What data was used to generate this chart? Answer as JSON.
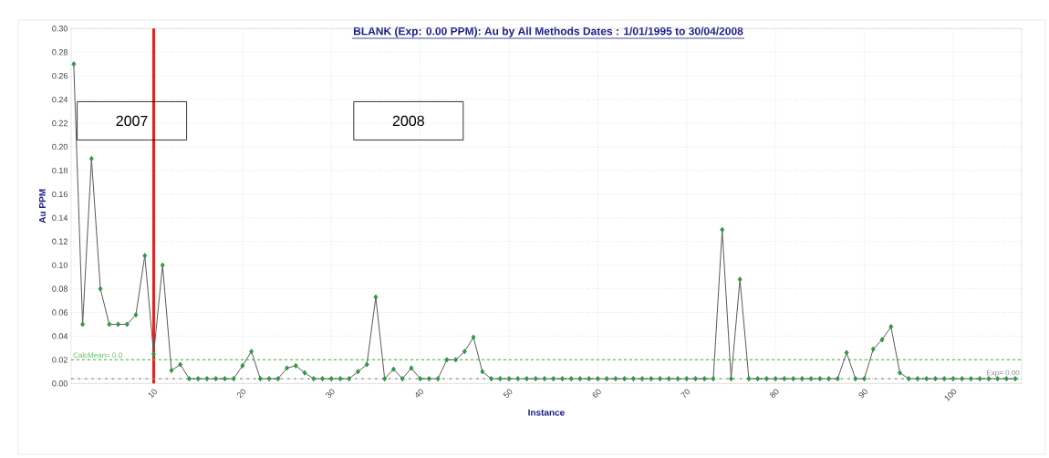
{
  "chart_data": {
    "type": "line",
    "title": "BLANK (Exp: 0.00 PPM): Au by All Methods Dates : 1/01/1995 to 30/04/2008",
    "xlabel": "Instance",
    "ylabel": "Au PPM",
    "x": [
      1,
      2,
      3,
      4,
      5,
      6,
      7,
      8,
      9,
      10,
      11,
      12,
      13,
      14,
      15,
      16,
      17,
      18,
      19,
      20,
      21,
      22,
      23,
      24,
      25,
      26,
      27,
      28,
      29,
      30,
      31,
      32,
      33,
      34,
      35,
      36,
      37,
      38,
      39,
      40,
      41,
      42,
      43,
      44,
      45,
      46,
      47,
      48,
      49,
      50,
      51,
      52,
      53,
      54,
      55,
      56,
      57,
      58,
      59,
      60,
      61,
      62,
      63,
      64,
      65,
      66,
      67,
      68,
      69,
      70,
      71,
      72,
      73,
      74,
      75,
      76,
      77,
      78,
      79,
      80,
      81,
      82,
      83,
      84,
      85,
      86,
      87,
      88,
      89,
      90,
      91,
      92,
      93,
      94,
      95,
      96,
      97,
      98,
      99,
      100,
      101,
      102,
      103,
      104,
      105,
      106,
      107
    ],
    "series": [
      {
        "color": "#2e9a44",
        "values": [
          0.27,
          0.05,
          0.19,
          0.08,
          0.05,
          0.05,
          0.05,
          0.058,
          0.108,
          0.025,
          0.1,
          0.011,
          0.016,
          0.004,
          0.004,
          0.004,
          0.004,
          0.004,
          0.004,
          0.015,
          0.027,
          0.004,
          0.004,
          0.004,
          0.013,
          0.015,
          0.009,
          0.004,
          0.004,
          0.004,
          0.004,
          0.004,
          0.01,
          0.016,
          0.073,
          0.004,
          0.012,
          0.004,
          0.013,
          0.004,
          0.004,
          0.004,
          0.02,
          0.02,
          0.027,
          0.039,
          0.01,
          0.004,
          0.004,
          0.004,
          0.004,
          0.004,
          0.004,
          0.004,
          0.004,
          0.004,
          0.004,
          0.004,
          0.004,
          0.004,
          0.004,
          0.004,
          0.004,
          0.004,
          0.004,
          0.004,
          0.004,
          0.004,
          0.004,
          0.004,
          0.004,
          0.004,
          0.004,
          0.13,
          0.004,
          0.088,
          0.004,
          0.004,
          0.004,
          0.004,
          0.004,
          0.004,
          0.004,
          0.004,
          0.004,
          0.004,
          0.004,
          0.026,
          0.004,
          0.004,
          0.029,
          0.037,
          0.048,
          0.009,
          0.004,
          0.004,
          0.004,
          0.004,
          0.004,
          0.004,
          0.004,
          0.004,
          0.004,
          0.004,
          0.004,
          0.004,
          0.004
        ]
      }
    ],
    "xlim": [
      0.7,
      107.7
    ],
    "ylim": [
      0,
      0.3
    ],
    "xticks": [
      10,
      20,
      30,
      40,
      50,
      60,
      70,
      80,
      90,
      100
    ],
    "yticks": [
      {
        "value": 0,
        "label": "0.00"
      },
      {
        "value": 0.02,
        "label": "0.02"
      },
      {
        "value": 0.04,
        "label": "0.04"
      },
      {
        "value": 0.06,
        "label": "0.06"
      },
      {
        "value": 0.08,
        "label": "0.08"
      },
      {
        "value": 0.1,
        "label": "0.10"
      },
      {
        "value": 0.12,
        "label": "0.12"
      },
      {
        "value": 0.14,
        "label": "0.14"
      },
      {
        "value": 0.16,
        "label": "0.16"
      },
      {
        "value": 0.18,
        "label": "0.18"
      },
      {
        "value": 0.2,
        "label": "0.20"
      },
      {
        "value": 0.22,
        "label": "0.22"
      },
      {
        "value": 0.24,
        "label": "0.24"
      },
      {
        "value": 0.26,
        "label": "0.26"
      },
      {
        "value": 0.28,
        "label": "0.28"
      },
      {
        "value": 0.3,
        "label": "0.30"
      }
    ],
    "ref_lines": [
      {
        "axis": "x",
        "value": 10,
        "color": "#e8201a",
        "line_style": "solid"
      },
      {
        "axis": "y",
        "value": 0.02,
        "label": "CalcMean= 0.0",
        "color": "#5cc05c",
        "line_style": "dashed"
      },
      {
        "axis": "y",
        "value": 0.004,
        "label": "Exp= 0.00",
        "color": "#8a8a8a",
        "line_style": "dashdot"
      }
    ],
    "annotations": [
      "2007",
      "2008"
    ],
    "grid": true,
    "marker": "diamond",
    "line_style": "solid"
  }
}
